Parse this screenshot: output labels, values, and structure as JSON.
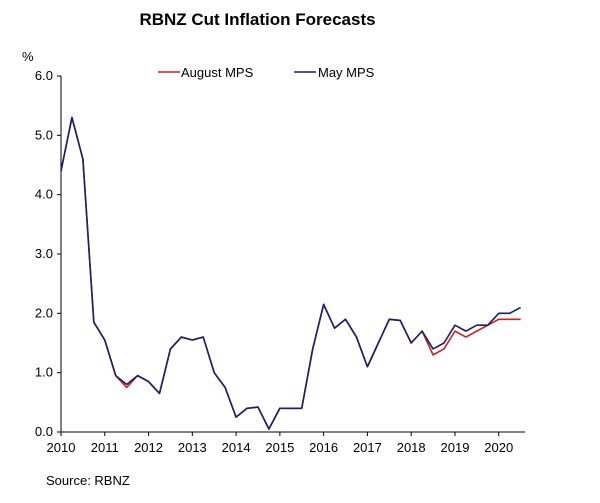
{
  "chart_data": {
    "type": "line",
    "title": "RBNZ Cut Inflation Forecasts",
    "ylabel": "%",
    "xlabel": "",
    "source": "Source: RBNZ",
    "ylim": [
      0,
      6
    ],
    "xlim": [
      2010,
      2020.6
    ],
    "yticks": [
      "0.0",
      "1.0",
      "2.0",
      "3.0",
      "4.0",
      "5.0",
      "6.0"
    ],
    "xticks": [
      "2010",
      "2011",
      "2012",
      "2013",
      "2014",
      "2015",
      "2016",
      "2017",
      "2018",
      "2019",
      "2020"
    ],
    "legend_position": "top-center",
    "x": [
      2010.0,
      2010.25,
      2010.5,
      2010.75,
      2011.0,
      2011.25,
      2011.5,
      2011.75,
      2012.0,
      2012.25,
      2012.5,
      2012.75,
      2013.0,
      2013.25,
      2013.5,
      2013.75,
      2014.0,
      2014.25,
      2014.5,
      2014.75,
      2015.0,
      2015.25,
      2015.5,
      2015.75,
      2016.0,
      2016.25,
      2016.5,
      2016.75,
      2017.0,
      2017.25,
      2017.5,
      2017.75,
      2018.0,
      2018.25,
      2018.5,
      2018.75,
      2019.0,
      2019.25,
      2019.5,
      2019.75,
      2020.0,
      2020.25,
      2020.5
    ],
    "series": [
      {
        "name": "August MPS",
        "color": "#cc2222",
        "values": [
          4.4,
          5.3,
          4.6,
          1.85,
          1.55,
          0.95,
          0.75,
          0.95,
          0.85,
          0.65,
          1.4,
          1.6,
          1.55,
          1.6,
          1.0,
          0.75,
          0.25,
          0.4,
          0.42,
          0.05,
          0.4,
          0.4,
          0.4,
          1.4,
          2.15,
          1.75,
          1.9,
          1.6,
          1.1,
          1.5,
          1.9,
          1.88,
          1.5,
          1.7,
          1.3,
          1.4,
          1.7,
          1.6,
          1.7,
          1.8,
          1.9,
          1.9,
          1.9
        ]
      },
      {
        "name": "May MPS",
        "color": "#1a1f6e",
        "values": [
          4.4,
          5.3,
          4.6,
          1.85,
          1.55,
          0.95,
          0.8,
          0.95,
          0.85,
          0.65,
          1.4,
          1.6,
          1.55,
          1.6,
          1.0,
          0.75,
          0.25,
          0.4,
          0.42,
          0.05,
          0.4,
          0.4,
          0.4,
          1.4,
          2.15,
          1.75,
          1.9,
          1.6,
          1.1,
          1.5,
          1.9,
          1.88,
          1.5,
          1.7,
          1.4,
          1.5,
          1.8,
          1.7,
          1.8,
          1.8,
          2.0,
          2.0,
          2.1
        ]
      }
    ]
  }
}
